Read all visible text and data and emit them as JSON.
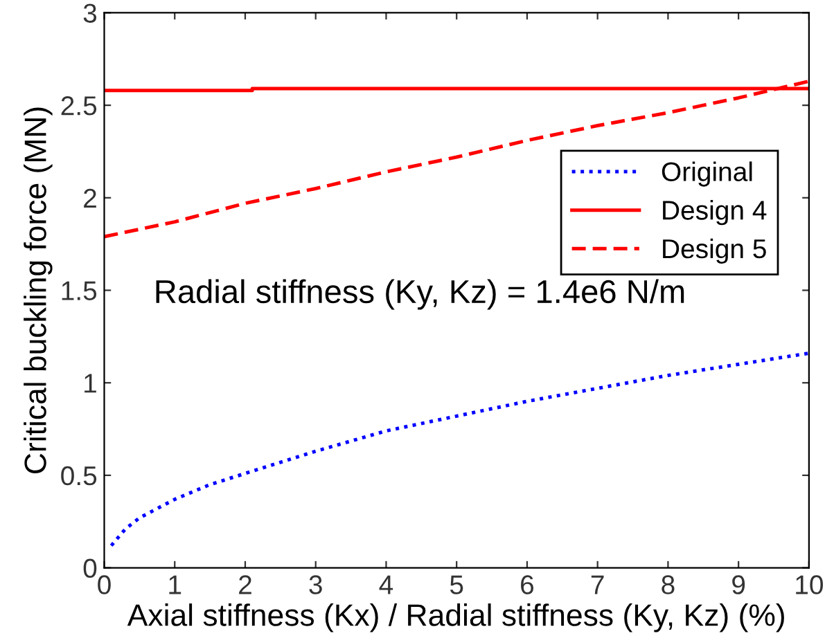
{
  "chart_data": {
    "type": "line",
    "xlabel": "Axial stiffness (Kx) / Radial stiffness (Ky, Kz) (%)",
    "ylabel": "Critical buckling force (MN)",
    "xlim": [
      0,
      10
    ],
    "ylim": [
      0,
      3
    ],
    "xticks": [
      0,
      1,
      2,
      3,
      4,
      5,
      6,
      7,
      8,
      9,
      10
    ],
    "yticks": [
      0,
      0.5,
      1,
      1.5,
      2,
      2.5,
      3
    ],
    "grid": false,
    "legend": "right",
    "marker": "none",
    "annotations": [
      "Radial stiffness (Ky, Kz) = 1.4e6 N/m"
    ],
    "series": [
      {
        "name": "Original",
        "color": "#0000ff",
        "line_style": "dotted",
        "x": [
          0.1,
          0.3,
          0.5,
          1,
          1.5,
          2,
          3,
          4,
          5,
          6,
          7,
          8,
          9,
          10
        ],
        "values": [
          0.12,
          0.21,
          0.27,
          0.37,
          0.45,
          0.51,
          0.63,
          0.74,
          0.82,
          0.9,
          0.97,
          1.04,
          1.1,
          1.16
        ]
      },
      {
        "name": "Design 4",
        "color": "#ff0000",
        "line_style": "solid",
        "x": [
          0,
          2.1,
          2.1,
          10
        ],
        "values": [
          2.58,
          2.58,
          2.59,
          2.59
        ]
      },
      {
        "name": "Design 5",
        "color": "#ff0000",
        "line_style": "dashed",
        "x": [
          0,
          1,
          2,
          3,
          4,
          5,
          6,
          7,
          8,
          9,
          10
        ],
        "values": [
          1.79,
          1.87,
          1.97,
          2.05,
          2.14,
          2.22,
          2.31,
          2.39,
          2.46,
          2.54,
          2.63
        ]
      }
    ]
  }
}
